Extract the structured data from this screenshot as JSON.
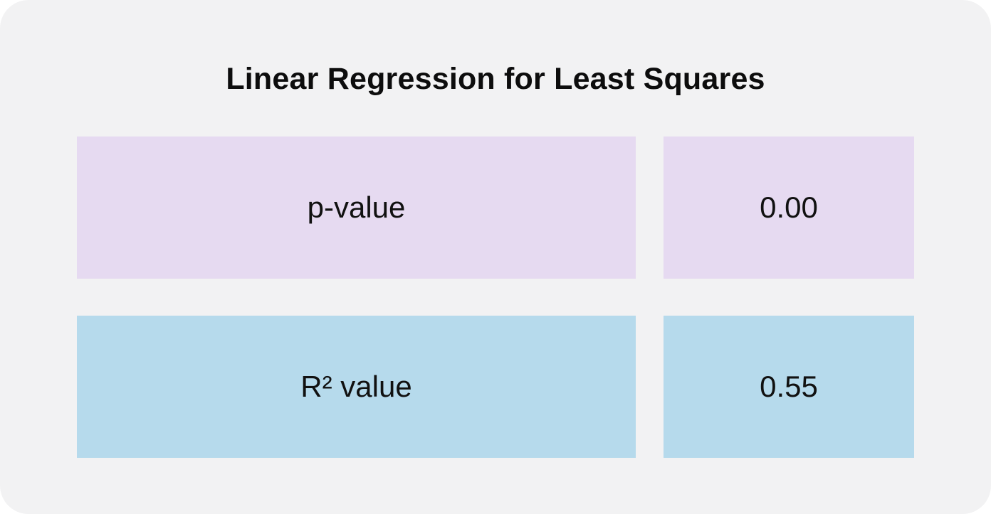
{
  "title": "Linear Regression for Least Squares",
  "rows": [
    {
      "label": "p-value",
      "value": "0.00",
      "color": "#e6daf1"
    },
    {
      "label": "R² value",
      "value": "0.55",
      "color": "#b6daec"
    }
  ],
  "colors": {
    "card_background": "#f2f2f3",
    "text": "#111111"
  }
}
